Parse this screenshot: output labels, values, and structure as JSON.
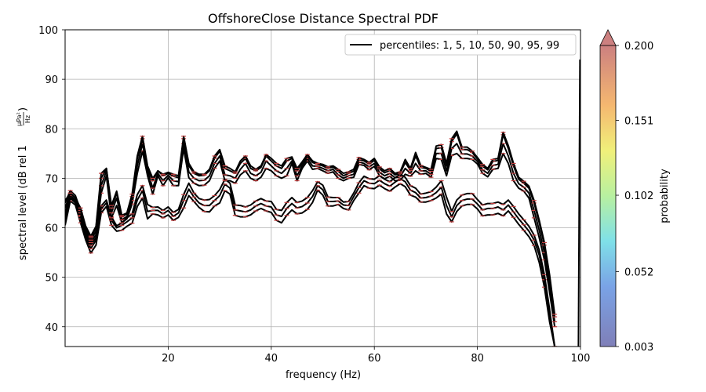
{
  "chart_data": {
    "type": "line",
    "title": "OffshoreClose Distance Spectral PDF",
    "xlabel": "frequency (Hz)",
    "ylabel": "spectral level (dB rel 1",
    "ylabel_unit_num": "μPa²",
    "ylabel_unit_den": "Hz",
    "ylabel_close": ")",
    "xlim": [
      0,
      100
    ],
    "ylim": [
      36,
      100
    ],
    "xticks": [
      "20",
      "40",
      "60",
      "80",
      "100"
    ],
    "yticks": [
      "40",
      "50",
      "60",
      "70",
      "80",
      "90",
      "100"
    ],
    "grid": true,
    "legend": {
      "placement": "top-right",
      "label": "percentiles: 1, 5, 10, 50, 90, 95, 99"
    },
    "colorbar": {
      "label": "probability",
      "ticks": [
        "0.003",
        "0.052",
        "0.102",
        "0.151",
        "0.200"
      ],
      "range": [
        0.003,
        0.2
      ],
      "extend": "max"
    },
    "x": [
      0,
      1,
      2,
      3,
      4,
      5,
      6,
      7,
      8,
      9,
      10,
      11,
      12,
      13,
      14,
      15,
      16,
      17,
      18,
      19,
      20,
      21,
      22,
      23,
      24,
      25,
      26,
      27,
      28,
      29,
      30,
      31,
      32,
      33,
      34,
      35,
      36,
      37,
      38,
      39,
      40,
      41,
      42,
      43,
      44,
      45,
      46,
      47,
      48,
      49,
      50,
      51,
      52,
      53,
      54,
      55,
      56,
      57,
      58,
      59,
      60,
      61,
      62,
      63,
      64,
      65,
      66,
      67,
      68,
      69,
      70,
      71,
      72,
      73,
      74,
      75,
      76,
      77,
      78,
      79,
      80,
      81,
      82,
      83,
      84,
      85,
      86,
      87,
      88,
      89,
      90,
      91,
      92,
      93,
      94,
      95
    ],
    "series": [
      {
        "values": [
          60.5,
          65.4,
          64.6,
          61,
          57.5,
          54.9,
          56.5,
          63,
          64.3,
          60.5,
          59.3,
          59.5,
          60.3,
          60.9,
          64.3,
          66,
          61.8,
          62.8,
          62.6,
          62,
          62.6,
          61.5,
          62.1,
          64,
          66.5,
          65.3,
          64.1,
          63.3,
          63.2,
          64.4,
          65,
          67.5,
          66.8,
          62.5,
          62.2,
          62.2,
          62.6,
          63.4,
          63.9,
          63.4,
          63.1,
          61.5,
          61,
          62.5,
          63.6,
          62.8,
          63,
          63.7,
          65.1,
          67.6,
          66.6,
          64.4,
          64.4,
          64.7,
          63.9,
          63.6,
          65.5,
          67,
          68.5,
          68,
          67.9,
          68.6,
          67.9,
          67.4,
          68.2,
          68.9,
          68.3,
          66.6,
          66.2,
          65.2,
          65.2,
          65.5,
          66,
          66.8,
          62.8,
          61.2,
          63.3,
          64.4,
          64.7,
          64.7,
          63.8,
          62.4,
          62.6,
          62.6,
          62.9,
          62.4,
          63.4,
          62.1,
          60.7,
          59.5,
          58.2,
          56.4,
          53,
          48,
          41,
          36
        ]
      },
      {
        "values": [
          61.5,
          66,
          65,
          61.8,
          58.1,
          55.8,
          57.5,
          63.8,
          65,
          61.5,
          60,
          60.5,
          61.2,
          62,
          65.6,
          67.5,
          63.3,
          63.5,
          63.5,
          62.8,
          63.5,
          62.3,
          63,
          65.5,
          67.8,
          66.2,
          65,
          64.5,
          64.5,
          65.5,
          66.5,
          68.8,
          68,
          63.6,
          63.4,
          63.2,
          63.6,
          64.4,
          64.9,
          64.4,
          64.2,
          62.6,
          62.3,
          63.9,
          64.9,
          64,
          64.3,
          65,
          66.3,
          68.5,
          67.7,
          65.3,
          65.3,
          65.4,
          64.6,
          64.5,
          66.3,
          68.1,
          69.5,
          69,
          68.9,
          69.6,
          68.9,
          68.4,
          69.2,
          69.9,
          69.3,
          67.6,
          67.1,
          66,
          66.1,
          66.4,
          67.1,
          68.2,
          64.5,
          62.2,
          64.5,
          65.5,
          65.8,
          65.8,
          64.8,
          63.6,
          63.9,
          63.9,
          64.2,
          63.6,
          64.6,
          63.2,
          61.8,
          60.6,
          59.3,
          57.5,
          54.5,
          49.5,
          42.5,
          36
        ]
      },
      {
        "values": [
          62,
          66.2,
          65.3,
          62.3,
          58.7,
          56.5,
          58,
          64.4,
          65.6,
          62.2,
          60.4,
          61,
          62,
          62.8,
          66.7,
          68.5,
          64.7,
          64.1,
          64.2,
          63.5,
          64.2,
          63.1,
          63.7,
          66.7,
          69,
          67,
          65.9,
          65.6,
          65.7,
          66.5,
          67.7,
          69.8,
          69,
          64.6,
          64.5,
          64.2,
          64.6,
          65.4,
          65.9,
          65.4,
          65.3,
          63.7,
          63.5,
          65.1,
          66.1,
          65.1,
          65.4,
          66.1,
          67.5,
          69.3,
          68.6,
          66.2,
          66.1,
          66.1,
          65.2,
          65.3,
          67,
          69.1,
          70.4,
          69.9,
          69.8,
          70.5,
          69.8,
          69.3,
          70.1,
          70.8,
          70.2,
          68.5,
          68,
          66.8,
          67,
          67.3,
          68.2,
          69.5,
          66.2,
          63.3,
          65.6,
          66.6,
          66.9,
          66.9,
          65.7,
          64.6,
          64.9,
          64.9,
          65.2,
          64.7,
          65.6,
          64.3,
          62.8,
          61.6,
          60.3,
          58.5,
          55.5,
          50.5,
          43.5,
          36
        ]
      },
      {
        "values": [
          63,
          66.5,
          65.6,
          62.5,
          59,
          57,
          58.6,
          67,
          70.5,
          62,
          64.5,
          61,
          61.8,
          64.8,
          71,
          75.5,
          70.5,
          66.8,
          70.5,
          68.5,
          70.1,
          68.5,
          68.5,
          76,
          70.1,
          69,
          68.5,
          68.6,
          69.5,
          72,
          73.5,
          69.5,
          69.5,
          69,
          70.7,
          71.5,
          70,
          69.5,
          70.2,
          72,
          71.5,
          70.5,
          70,
          70.5,
          73,
          69.5,
          72,
          73.5,
          71.8,
          72,
          71.5,
          71,
          71.3,
          70,
          69.5,
          70,
          70.2,
          72.8,
          72.6,
          71.7,
          72.4,
          70.5,
          69.9,
          70.4,
          69.5,
          69.6,
          70.8,
          70.4,
          71.5,
          70.8,
          71,
          70.2,
          74,
          73.8,
          70.5,
          74.6,
          75,
          74,
          74,
          73.8,
          72.9,
          71,
          70.3,
          71.8,
          72,
          75,
          73,
          69.5,
          68,
          67.4,
          66,
          62,
          58,
          53.5,
          47,
          40
        ]
      },
      {
        "values": [
          64,
          67,
          66,
          63,
          59.5,
          57.5,
          59.3,
          68.5,
          71.5,
          63,
          66,
          61.6,
          62.3,
          65.5,
          72.5,
          77,
          71.5,
          68,
          71,
          69.5,
          70.6,
          69.5,
          69.3,
          77,
          71.3,
          70,
          69.5,
          69.6,
          70.5,
          73,
          74.5,
          70.7,
          70.5,
          70,
          71.8,
          73,
          71,
          70.5,
          71.2,
          73.5,
          72.5,
          71.5,
          71,
          72,
          73.5,
          70.5,
          72.5,
          74,
          72.5,
          72.4,
          72,
          71.5,
          71.8,
          70.7,
          70,
          70.5,
          70.8,
          73.3,
          73,
          72.3,
          73,
          71.2,
          70.5,
          71,
          70.1,
          70.3,
          72,
          71,
          73,
          71.5,
          71.5,
          70.8,
          75,
          75,
          71.5,
          76,
          77,
          74.9,
          74.9,
          74.5,
          73.4,
          71.7,
          71,
          72.6,
          72.8,
          77,
          74.5,
          71,
          68.9,
          68.2,
          67,
          63.5,
          59.5,
          55,
          48.5,
          41
        ]
      },
      {
        "values": [
          65,
          67.5,
          66.5,
          63.5,
          60,
          58,
          60,
          70,
          72,
          64,
          67,
          62.2,
          62.8,
          66.3,
          74,
          78,
          72,
          69.5,
          71.5,
          70.5,
          71,
          70.4,
          70.1,
          78,
          72.5,
          71,
          70.5,
          70.6,
          71.5,
          74,
          75.5,
          72,
          71.5,
          71,
          73,
          74,
          72,
          71.5,
          72.2,
          74.5,
          73.5,
          72.5,
          72,
          73.5,
          74,
          71.5,
          73,
          74.5,
          73.2,
          72.8,
          72.5,
          72,
          72.3,
          71.4,
          70.5,
          71,
          71.4,
          73.8,
          73.5,
          72.9,
          73.6,
          71.9,
          71.1,
          71.6,
          70.7,
          71,
          73.2,
          71.6,
          74.5,
          72.2,
          72,
          71.4,
          76,
          76.2,
          72.5,
          77.4,
          79,
          75.8,
          75.8,
          75.2,
          73.9,
          72.4,
          71.7,
          73.4,
          73.6,
          78.8,
          76,
          72.5,
          69.8,
          69,
          68,
          65,
          61,
          56.5,
          50,
          42
        ]
      },
      {
        "values": [
          65.5,
          67,
          66,
          64,
          60.3,
          58.3,
          60.3,
          71,
          72,
          64.5,
          67.4,
          62.5,
          63,
          66.8,
          74.5,
          78.5,
          72.5,
          70,
          71.5,
          70.8,
          71.2,
          70.8,
          70.5,
          78.5,
          73,
          71.3,
          70.8,
          70.8,
          71.8,
          74.5,
          75.8,
          72.5,
          72,
          71.3,
          73.5,
          74.5,
          72.5,
          71.8,
          72.5,
          74.8,
          74,
          73,
          72.5,
          74,
          74.3,
          72,
          73.3,
          74.8,
          73.5,
          73,
          72.8,
          72.3,
          72.5,
          71.8,
          71,
          71.3,
          71.8,
          74.2,
          73.8,
          73.2,
          74,
          72.3,
          71.5,
          72,
          71,
          71.3,
          73.8,
          72,
          75.2,
          72.6,
          72.2,
          71.8,
          76.5,
          76.8,
          73,
          78,
          79.5,
          76.3,
          76.3,
          75.5,
          74.2,
          72.8,
          72,
          73.8,
          74,
          79.3,
          76.6,
          73,
          70.2,
          69.4,
          68.4,
          65.5,
          61.5,
          57,
          50.5,
          42.5
        ]
      }
    ]
  }
}
